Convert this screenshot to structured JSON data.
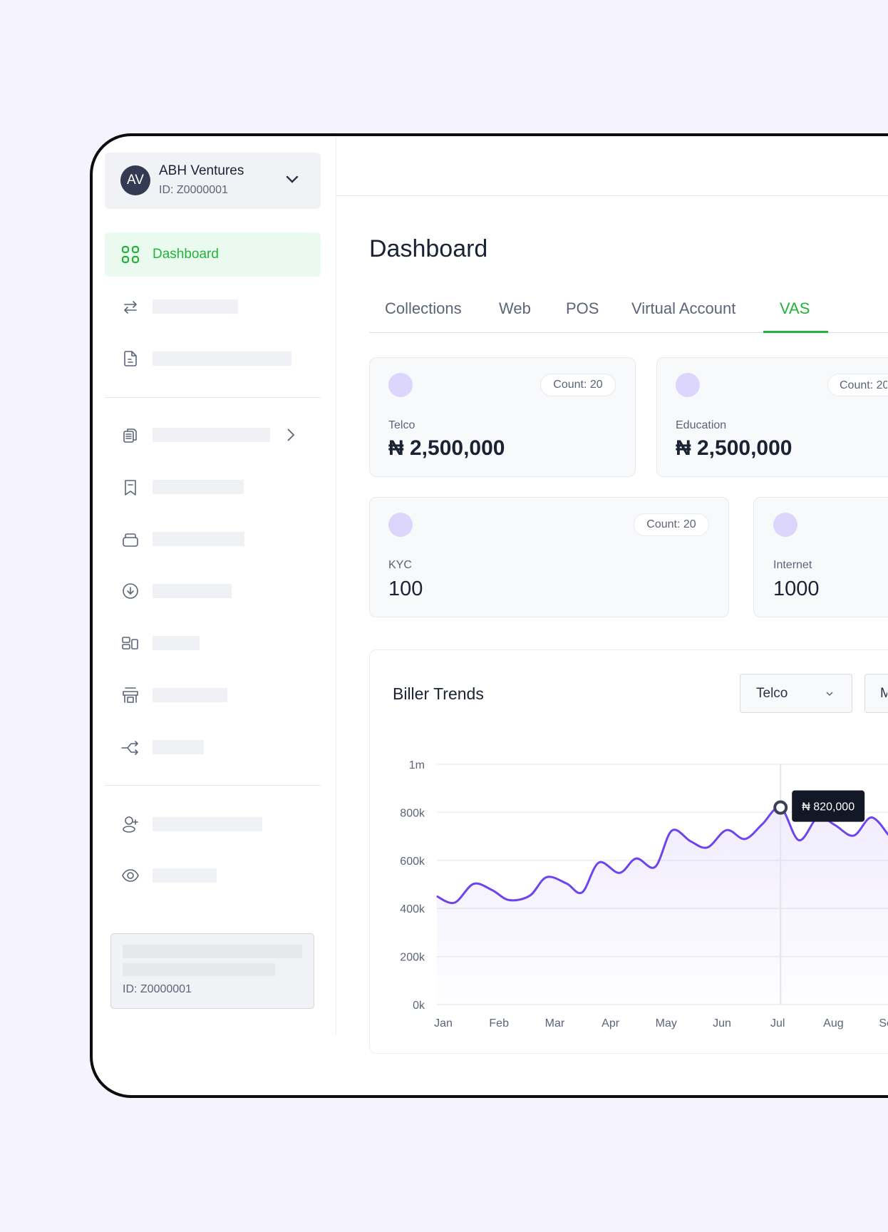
{
  "account": {
    "initials": "AV",
    "name": "ABH Ventures",
    "id": "ID: Z0000001"
  },
  "sidebar": {
    "active_item": "Dashboard",
    "footer_id": "ID: Z0000001"
  },
  "main": {
    "title": "Dashboard",
    "tabs": [
      "Collections",
      "Web",
      "POS",
      "Virtual Account",
      "VAS"
    ],
    "active_tab": "VAS"
  },
  "cards": [
    {
      "label": "Telco",
      "value": "₦ 2,500,000",
      "count": "Count: 20"
    },
    {
      "label": "Education",
      "value": "₦ 2,500,000",
      "count": "Count: 20"
    },
    {
      "label": "KYC",
      "value": "100",
      "count": "Count: 20"
    },
    {
      "label": "Internet",
      "value": "1000"
    }
  ],
  "trends": {
    "title": "Biller Trends",
    "biller_select": "Telco",
    "period_select": "Monthly"
  },
  "colors": {
    "accent": "#22b33a",
    "line": "#6e44ee",
    "tooltip": "#121826"
  },
  "chart_data": {
    "type": "line",
    "title": "Biller Trends",
    "x_categories": [
      "Jan",
      "Feb",
      "Mar",
      "Apr",
      "May",
      "Jun",
      "Jul",
      "Aug",
      "Sep"
    ],
    "y_ticks": [
      "0k",
      "200k",
      "400k",
      "600k",
      "800k",
      "1m"
    ],
    "ylim": [
      0,
      1000000
    ],
    "grid": true,
    "series": [
      {
        "name": "Telco",
        "points": [
          [
            -0.17,
            451000
          ],
          [
            0.15,
            424000
          ],
          [
            0.49,
            502000
          ],
          [
            0.82,
            477000
          ],
          [
            1.13,
            435000
          ],
          [
            1.5,
            453000
          ],
          [
            1.8,
            530000
          ],
          [
            2.16,
            504000
          ],
          [
            2.44,
            467000
          ],
          [
            2.74,
            591000
          ],
          [
            3.11,
            548000
          ],
          [
            3.41,
            608000
          ],
          [
            3.75,
            573000
          ],
          [
            4.05,
            724000
          ],
          [
            4.39,
            679000
          ],
          [
            4.69,
            654000
          ],
          [
            5.03,
            726000
          ],
          [
            5.36,
            689000
          ],
          [
            5.67,
            750000
          ],
          [
            6.0,
            820000
          ],
          [
            6.33,
            684000
          ],
          [
            6.67,
            779000
          ],
          [
            6.97,
            748000
          ],
          [
            7.31,
            703000
          ],
          [
            7.63,
            779000
          ],
          [
            7.94,
            705000
          ]
        ]
      }
    ],
    "highlight": {
      "x": "Jul",
      "month_index": 6,
      "value": 820000,
      "label": "₦ 820,000"
    }
  }
}
